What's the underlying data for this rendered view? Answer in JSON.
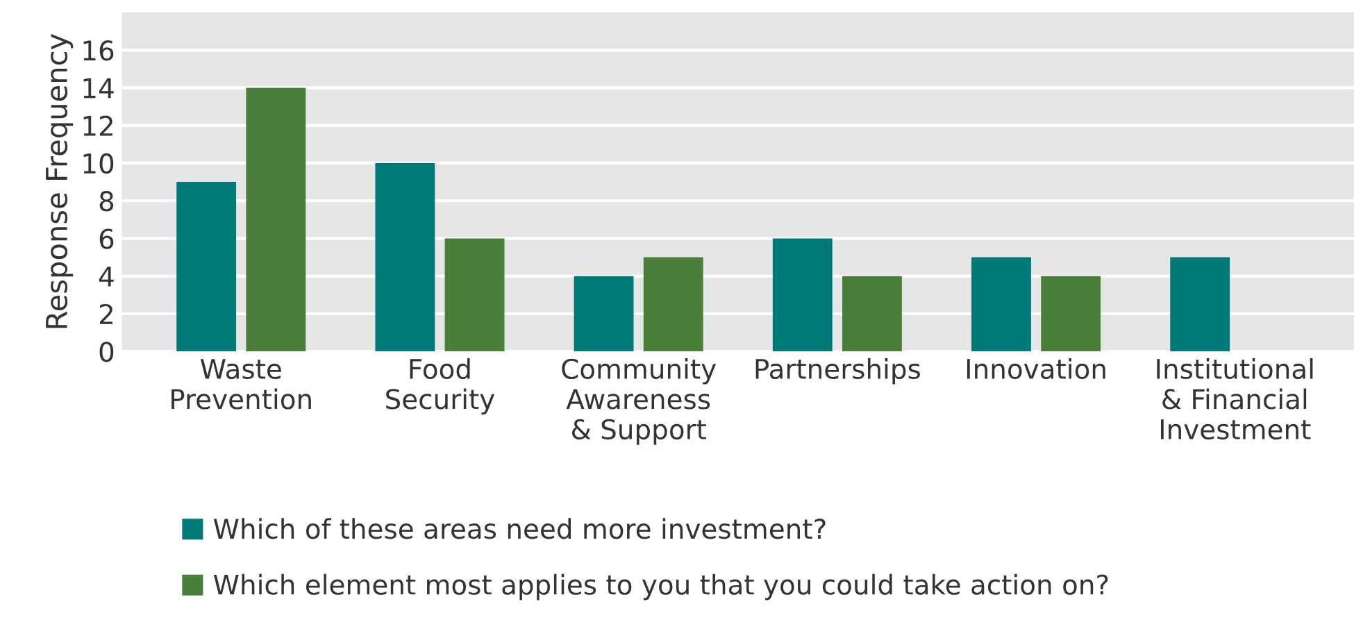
{
  "chart_data": {
    "type": "bar",
    "ylabel": "Response Frequency",
    "categories": [
      "Waste\nPrevention",
      "Food\nSecurity",
      "Community\nAwareness\n& Support",
      "Partnerships",
      "Innovation",
      "Institutional\n& Financial\nInvestment"
    ],
    "series": [
      {
        "name": "Which of these areas need more investment?",
        "color": "#007a78",
        "values": [
          9,
          10,
          4,
          6,
          5,
          5
        ]
      },
      {
        "name": "Which element most applies to you that you could take action on?",
        "color": "#4a7f3a",
        "values": [
          14,
          6,
          5,
          4,
          4,
          null
        ]
      }
    ],
    "ylim": [
      0,
      18
    ],
    "yticks": [
      0,
      2,
      4,
      6,
      8,
      10,
      12,
      14,
      16
    ],
    "grid": "y",
    "legend": "bottom"
  }
}
